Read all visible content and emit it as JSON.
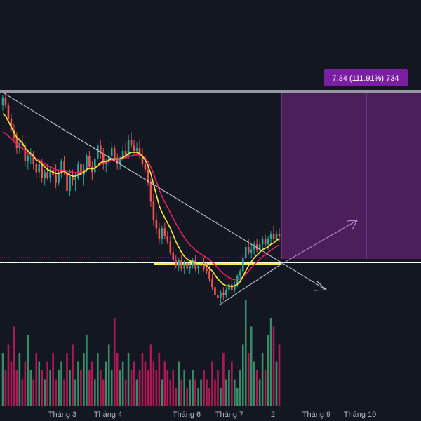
{
  "chart_data": {
    "type": "candlestick",
    "x_tick_labels": [
      "Tháng 3",
      "Tháng 4",
      "Tháng 6",
      "Tháng 7",
      "2",
      "Tháng 9",
      "Tháng 10"
    ],
    "measure_label": "7.34 (111.91%) 734",
    "candles": [
      [
        3.0,
        3.4,
        2.8,
        3.3
      ],
      [
        3.3,
        3.5,
        2.9,
        3.0
      ],
      [
        3.0,
        3.1,
        2.4,
        2.5
      ],
      [
        2.5,
        2.7,
        2.0,
        2.1
      ],
      [
        2.1,
        2.3,
        1.6,
        1.8
      ],
      [
        1.8,
        2.0,
        1.2,
        1.4
      ],
      [
        1.4,
        1.8,
        1.2,
        1.6
      ],
      [
        1.6,
        1.9,
        1.3,
        1.5
      ],
      [
        1.5,
        1.6,
        0.7,
        0.9
      ],
      [
        0.9,
        1.2,
        0.6,
        1.1
      ],
      [
        1.1,
        1.4,
        0.8,
        1.2
      ],
      [
        1.2,
        1.3,
        0.6,
        0.8
      ],
      [
        0.8,
        1.0,
        0.3,
        0.5
      ],
      [
        0.5,
        0.9,
        0.3,
        0.8
      ],
      [
        0.8,
        1.0,
        0.1,
        0.3
      ],
      [
        0.3,
        0.6,
        0.0,
        0.5
      ],
      [
        0.5,
        0.8,
        0.2,
        0.3
      ],
      [
        0.3,
        0.7,
        0.1,
        0.6
      ],
      [
        0.6,
        0.9,
        0.3,
        0.4
      ],
      [
        0.4,
        0.8,
        -0.1,
        0.1
      ],
      [
        0.1,
        0.6,
        0.0,
        0.5
      ],
      [
        0.5,
        1.0,
        0.3,
        0.9
      ],
      [
        0.9,
        1.1,
        0.4,
        0.5
      ],
      [
        0.5,
        0.7,
        -0.4,
        -0.2
      ],
      [
        -0.2,
        0.6,
        -0.4,
        0.4
      ],
      [
        0.4,
        0.6,
        0.0,
        0.2
      ],
      [
        0.2,
        0.5,
        -0.2,
        0.3
      ],
      [
        0.3,
        0.9,
        0.2,
        0.8
      ],
      [
        0.8,
        1.0,
        0.3,
        0.4
      ],
      [
        0.4,
        0.8,
        0.0,
        0.6
      ],
      [
        0.6,
        1.2,
        0.5,
        1.1
      ],
      [
        1.1,
        1.3,
        0.6,
        0.7
      ],
      [
        0.7,
        0.9,
        0.2,
        0.5
      ],
      [
        0.5,
        1.1,
        0.4,
        1.0
      ],
      [
        1.0,
        1.6,
        0.9,
        1.5
      ],
      [
        1.5,
        1.7,
        1.0,
        1.2
      ],
      [
        1.2,
        1.4,
        0.6,
        0.8
      ],
      [
        0.8,
        1.0,
        0.5,
        0.9
      ],
      [
        0.9,
        1.3,
        0.7,
        1.1
      ],
      [
        1.1,
        1.6,
        1.0,
        1.4
      ],
      [
        1.4,
        1.5,
        0.9,
        1.0
      ],
      [
        1.0,
        1.2,
        0.6,
        0.8
      ],
      [
        0.8,
        1.1,
        0.6,
        1.0
      ],
      [
        1.0,
        1.5,
        0.9,
        1.3
      ],
      [
        1.3,
        1.6,
        1.0,
        1.1
      ],
      [
        1.1,
        1.9,
        1.0,
        1.7
      ],
      [
        1.7,
        2.0,
        1.4,
        1.5
      ],
      [
        1.5,
        1.7,
        1.2,
        1.3
      ],
      [
        1.3,
        1.6,
        1.1,
        1.4
      ],
      [
        1.4,
        1.7,
        1.0,
        1.1
      ],
      [
        1.1,
        1.4,
        0.7,
        0.8
      ],
      [
        0.8,
        1.1,
        0.5,
        0.6
      ],
      [
        0.6,
        0.8,
        0.0,
        0.1
      ],
      [
        0.1,
        0.3,
        -0.8,
        -0.6
      ],
      [
        -0.6,
        -0.3,
        -1.5,
        -1.3
      ],
      [
        -1.3,
        -1.0,
        -1.8,
        -1.6
      ],
      [
        -1.6,
        -1.4,
        -2.2,
        -2.0
      ],
      [
        -2.0,
        -1.5,
        -2.2,
        -1.6
      ],
      [
        -1.6,
        -1.4,
        -2.0,
        -1.9
      ],
      [
        -1.9,
        -1.7,
        -2.2,
        -2.1
      ],
      [
        -2.1,
        -1.9,
        -2.6,
        -2.5
      ],
      [
        -2.5,
        -2.3,
        -2.9,
        -2.8
      ],
      [
        -2.8,
        -2.6,
        -3.1,
        -3.0
      ],
      [
        -3.0,
        -2.7,
        -3.2,
        -2.8
      ],
      [
        -2.8,
        -2.6,
        -3.2,
        -3.1
      ],
      [
        -3.1,
        -2.8,
        -3.3,
        -2.9
      ],
      [
        -2.9,
        -2.7,
        -3.2,
        -3.1
      ],
      [
        -3.1,
        -2.9,
        -3.3,
        -3.0
      ],
      [
        -3.0,
        -2.7,
        -3.1,
        -2.8
      ],
      [
        -2.8,
        -2.6,
        -3.2,
        -3.1
      ],
      [
        -3.1,
        -2.9,
        -3.3,
        -3.0
      ],
      [
        -3.0,
        -2.8,
        -3.2,
        -2.9
      ],
      [
        -2.9,
        -2.7,
        -3.2,
        -3.1
      ],
      [
        -3.1,
        -2.9,
        -3.3,
        -3.2
      ],
      [
        -3.2,
        -3.0,
        -3.6,
        -3.5
      ],
      [
        -3.5,
        -3.3,
        -3.9,
        -3.8
      ],
      [
        -3.8,
        -3.5,
        -4.2,
        -4.1
      ],
      [
        -4.1,
        -3.9,
        -4.4,
        -4.2
      ],
      [
        -4.2,
        -3.9,
        -4.4,
        -4.0
      ],
      [
        -4.0,
        -3.8,
        -4.3,
        -4.1
      ],
      [
        -4.1,
        -3.8,
        -4.2,
        -3.9
      ],
      [
        -3.9,
        -3.6,
        -4.1,
        -3.7
      ],
      [
        -3.7,
        -3.5,
        -4.0,
        -3.9
      ],
      [
        -3.9,
        -3.6,
        -4.0,
        -3.7
      ],
      [
        -3.7,
        -3.3,
        -3.8,
        -3.4
      ],
      [
        -3.4,
        -3.1,
        -3.6,
        -3.2
      ],
      [
        -3.2,
        -2.6,
        -3.3,
        -2.7
      ],
      [
        -2.7,
        -2.2,
        -2.8,
        -2.3
      ],
      [
        -2.3,
        -2.0,
        -2.6,
        -2.5
      ],
      [
        -2.5,
        -2.2,
        -2.7,
        -2.4
      ],
      [
        -2.4,
        -2.1,
        -2.6,
        -2.2
      ],
      [
        -2.2,
        -2.0,
        -2.5,
        -2.4
      ],
      [
        -2.4,
        -2.1,
        -2.6,
        -2.2
      ],
      [
        -2.2,
        -1.9,
        -2.4,
        -2.0
      ],
      [
        -2.0,
        -1.8,
        -2.3,
        -2.2
      ],
      [
        -2.2,
        -1.9,
        -2.4,
        -2.0
      ],
      [
        -2.0,
        -1.7,
        -2.2,
        -1.8
      ],
      [
        -1.8,
        -1.5,
        -2.1,
        -2.0
      ],
      [
        -2.0,
        -1.7,
        -2.1,
        -1.8
      ],
      [
        -1.8,
        -1.6,
        -2.1,
        -1.9
      ]
    ],
    "ema_fast": [
      2.7,
      2.6,
      2.4,
      2.2,
      2.0,
      1.8,
      1.7,
      1.6,
      1.4,
      1.3,
      1.2,
      1.1,
      0.95,
      0.9,
      0.8,
      0.7,
      0.6,
      0.55,
      0.5,
      0.45,
      0.45,
      0.5,
      0.55,
      0.45,
      0.4,
      0.35,
      0.35,
      0.4,
      0.45,
      0.5,
      0.6,
      0.65,
      0.62,
      0.65,
      0.75,
      0.85,
      0.9,
      0.9,
      0.95,
      1.0,
      1.0,
      1.0,
      1.0,
      1.05,
      1.1,
      1.2,
      1.25,
      1.25,
      1.25,
      1.2,
      1.1,
      0.95,
      0.75,
      0.45,
      0.05,
      -0.35,
      -0.75,
      -1.0,
      -1.2,
      -1.4,
      -1.6,
      -1.85,
      -2.1,
      -2.3,
      -2.5,
      -2.65,
      -2.75,
      -2.82,
      -2.85,
      -2.9,
      -2.92,
      -2.93,
      -2.95,
      -3.0,
      -3.1,
      -3.2,
      -3.35,
      -3.5,
      -3.6,
      -3.7,
      -3.75,
      -3.75,
      -3.78,
      -3.75,
      -3.7,
      -3.6,
      -3.4,
      -3.2,
      -3.0,
      -2.85,
      -2.7,
      -2.6,
      -2.5,
      -2.4,
      -2.35,
      -2.3,
      -2.2,
      -2.15,
      -2.05,
      -2.0
    ],
    "ema_slow": [
      2.0,
      1.95,
      1.85,
      1.75,
      1.65,
      1.55,
      1.45,
      1.4,
      1.3,
      1.22,
      1.15,
      1.08,
      1.0,
      0.95,
      0.88,
      0.8,
      0.74,
      0.7,
      0.65,
      0.6,
      0.58,
      0.58,
      0.58,
      0.55,
      0.52,
      0.5,
      0.48,
      0.5,
      0.52,
      0.55,
      0.6,
      0.64,
      0.65,
      0.68,
      0.74,
      0.8,
      0.84,
      0.86,
      0.9,
      0.94,
      0.96,
      0.97,
      0.98,
      1.0,
      1.03,
      1.08,
      1.12,
      1.14,
      1.16,
      1.15,
      1.1,
      1.02,
      0.9,
      0.7,
      0.45,
      0.15,
      -0.15,
      -0.4,
      -0.62,
      -0.82,
      -1.02,
      -1.22,
      -1.42,
      -1.6,
      -1.78,
      -1.95,
      -2.1,
      -2.22,
      -2.32,
      -2.42,
      -2.5,
      -2.57,
      -2.63,
      -2.7,
      -2.78,
      -2.86,
      -2.96,
      -3.08,
      -3.2,
      -3.3,
      -3.38,
      -3.44,
      -3.5,
      -3.52,
      -3.52,
      -3.5,
      -3.42,
      -3.32,
      -3.2,
      -3.08,
      -2.96,
      -2.86,
      -2.76,
      -2.66,
      -2.58,
      -2.5,
      -2.42,
      -2.35,
      -2.28,
      -2.22
    ],
    "volume": [
      6,
      4,
      7,
      5,
      9,
      4,
      6,
      3,
      5,
      8,
      4,
      3,
      6,
      5,
      4,
      3,
      5,
      4,
      6,
      3,
      4,
      5,
      3,
      6,
      4,
      7,
      3,
      5,
      4,
      6,
      8,
      4,
      5,
      3,
      6,
      4,
      3,
      5,
      7,
      4,
      10,
      6,
      4,
      5,
      3,
      6,
      4,
      5,
      3,
      4,
      6,
      5,
      4,
      7,
      5,
      4,
      6,
      3,
      5,
      4,
      3,
      4,
      2,
      5,
      3,
      4,
      2,
      3,
      4,
      3,
      2,
      3,
      4,
      3,
      2,
      5,
      3,
      4,
      2,
      6,
      3,
      4,
      5,
      3,
      2,
      4,
      7,
      12,
      6,
      9,
      5,
      4,
      3,
      6,
      4,
      8,
      10,
      9,
      5,
      7
    ]
  }
}
